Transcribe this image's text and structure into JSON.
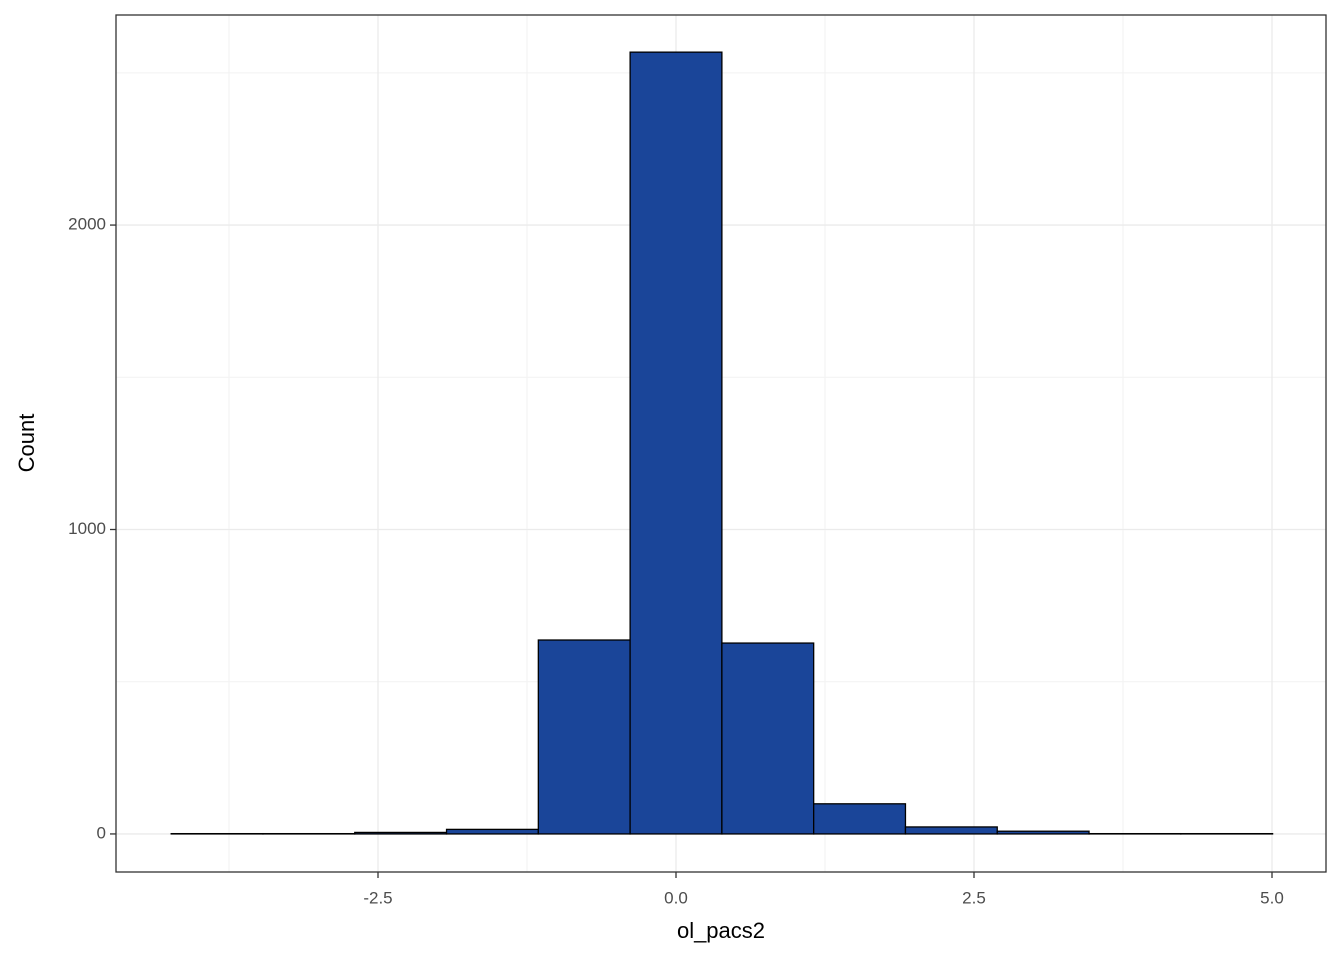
{
  "chart_data": {
    "type": "histogram",
    "x_label": "ol_pacs2",
    "y_label": "Count",
    "bins": [
      -4.235,
      -3.465,
      -2.695,
      -1.925,
      -1.155,
      -0.385,
      0.385,
      1.155,
      1.925,
      2.695,
      3.465,
      4.235,
      5.005
    ],
    "counts": [
      1,
      1,
      5,
      15,
      637,
      2568,
      627,
      99,
      23,
      9,
      1,
      1
    ],
    "color": "#1a4599",
    "xlim": [
      -4.698,
      5.453
    ],
    "ylim": [
      -125,
      2690
    ],
    "xticks": [
      {
        "value": -2.5,
        "label": "-2.5"
      },
      {
        "value": 0,
        "label": "0.0"
      },
      {
        "value": 2.5,
        "label": "2.5"
      },
      {
        "value": 5,
        "label": "5.0"
      }
    ],
    "yticks": [
      0,
      1000,
      2000
    ],
    "x_minor_ticks": [
      -3.75,
      -1.25,
      1.25,
      3.75
    ],
    "y_minor_ticks": [
      500,
      1500,
      2500
    ],
    "grid": true
  }
}
